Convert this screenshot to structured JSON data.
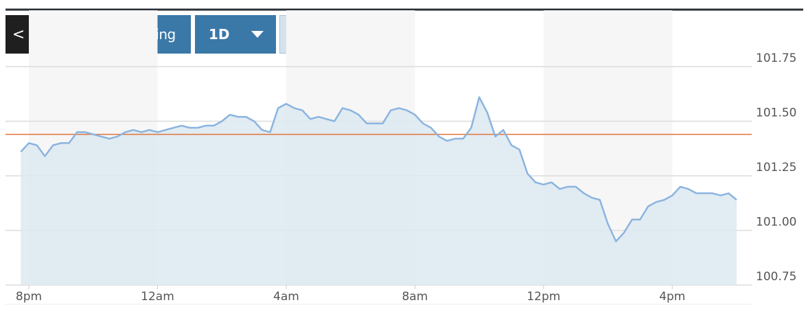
{
  "toolbar": {
    "back": "<",
    "title": "Advanced Charting",
    "period": "1D",
    "units": [
      "$",
      "%"
    ]
  },
  "chart_data": {
    "type": "area",
    "color": "#8ab4e0",
    "fill": "#dde9f1",
    "x": [
      "19:45",
      "20:00",
      "20:15",
      "20:30",
      "20:45",
      "21:00",
      "21:15",
      "21:30",
      "21:45",
      "22:00",
      "22:15",
      "22:30",
      "22:45",
      "23:00",
      "23:15",
      "23:30",
      "23:45",
      "00:00",
      "00:15",
      "00:30",
      "00:45",
      "01:00",
      "01:15",
      "01:30",
      "01:45",
      "02:00",
      "02:15",
      "02:30",
      "02:45",
      "03:00",
      "03:15",
      "03:30",
      "03:45",
      "04:00",
      "04:15",
      "04:30",
      "04:45",
      "05:00",
      "05:15",
      "05:30",
      "05:45",
      "06:00",
      "06:15",
      "06:30",
      "06:45",
      "07:00",
      "07:15",
      "07:30",
      "07:45",
      "08:00",
      "08:15",
      "08:30",
      "08:45",
      "09:00",
      "09:15",
      "09:30",
      "09:45",
      "10:00",
      "10:15",
      "10:30",
      "10:45",
      "11:00",
      "11:15",
      "11:30",
      "11:45",
      "12:00",
      "12:15",
      "12:30",
      "12:45",
      "13:00",
      "13:15",
      "13:30",
      "13:45",
      "14:00",
      "14:15",
      "14:30",
      "14:45",
      "15:00",
      "15:15",
      "15:30",
      "15:45",
      "16:00",
      "16:15",
      "16:30",
      "16:45",
      "17:00",
      "17:15",
      "17:30",
      "17:45",
      "18:00"
    ],
    "values": [
      101.36,
      101.4,
      101.39,
      101.34,
      101.39,
      101.4,
      101.4,
      101.45,
      101.45,
      101.44,
      101.43,
      101.42,
      101.43,
      101.45,
      101.46,
      101.45,
      101.46,
      101.45,
      101.46,
      101.47,
      101.48,
      101.47,
      101.47,
      101.48,
      101.48,
      101.5,
      101.53,
      101.52,
      101.52,
      101.5,
      101.46,
      101.45,
      101.56,
      101.58,
      101.56,
      101.55,
      101.51,
      101.52,
      101.51,
      101.5,
      101.56,
      101.55,
      101.53,
      101.49,
      101.49,
      101.49,
      101.55,
      101.56,
      101.55,
      101.53,
      101.49,
      101.47,
      101.43,
      101.41,
      101.42,
      101.42,
      101.47,
      101.61,
      101.54,
      101.43,
      101.46,
      101.39,
      101.37,
      101.26,
      101.22,
      101.21,
      101.22,
      101.19,
      101.2,
      101.2,
      101.17,
      101.15,
      101.14,
      101.03,
      100.95,
      100.99,
      101.05,
      101.05,
      101.11,
      101.13,
      101.14,
      101.16,
      101.2,
      101.19,
      101.17,
      101.17,
      101.17,
      101.16,
      101.17,
      101.14
    ],
    "xlim": [
      "19:45",
      "18:00"
    ],
    "xticks": [
      {
        "value": "20:00",
        "label": "8pm"
      },
      {
        "value": "00:00",
        "label": "12am"
      },
      {
        "value": "04:00",
        "label": "4am"
      },
      {
        "value": "08:00",
        "label": "8am"
      },
      {
        "value": "12:00",
        "label": "12pm"
      },
      {
        "value": "16:00",
        "label": "4pm"
      }
    ],
    "ylim": [
      100.75,
      101.75
    ],
    "yticks": [
      100.75,
      {
        "value": 101,
        "label": "101.00"
      },
      101.25,
      {
        "value": 101.5,
        "label": "101.50"
      },
      101.75
    ],
    "reference_line": {
      "value": 101.44,
      "color": "#e0733a"
    },
    "grid": true
  }
}
